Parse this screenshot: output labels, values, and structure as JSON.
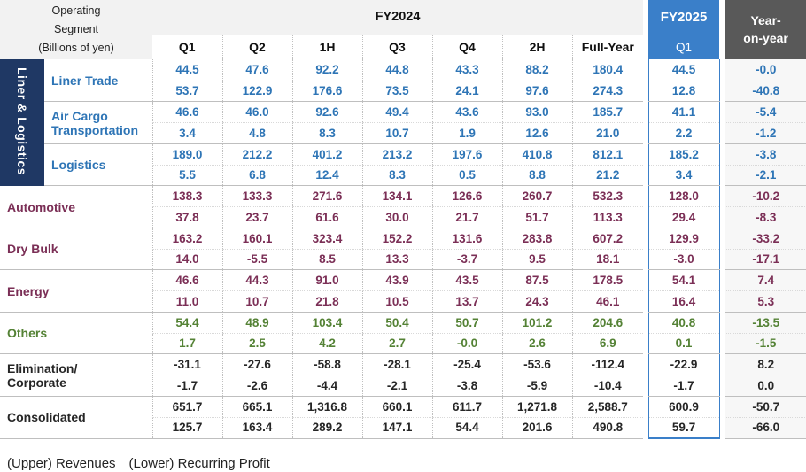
{
  "header": {
    "segment_label": "Operating Segment (Billions of yen)",
    "segment_line1": "Operating",
    "segment_line2": "Segment",
    "segment_line3": "(Billions of yen)",
    "fy2024": "FY2024",
    "fy2025": "FY2025",
    "yoy_line1": "Year-",
    "yoy_line2": "on-year",
    "columns": [
      "Q1",
      "Q2",
      "1H",
      "Q3",
      "Q4",
      "2H",
      "Full-Year"
    ],
    "fy2025_column": "Q1"
  },
  "group_label": "Liner & Logistics",
  "rows": [
    {
      "name": "Liner Trade",
      "color": "#2e75b6",
      "revenue": [
        "44.5",
        "47.6",
        "92.2",
        "44.8",
        "43.3",
        "88.2",
        "180.4",
        "44.5",
        "-0.0"
      ],
      "profit": [
        "53.7",
        "122.9",
        "176.6",
        "73.5",
        "24.1",
        "97.6",
        "274.3",
        "12.8",
        "-40.8"
      ]
    },
    {
      "name": "Air Cargo Transportation",
      "name_line1": "Air Cargo",
      "name_line2": "Transportation",
      "color": "#2e75b6",
      "revenue": [
        "46.6",
        "46.0",
        "92.6",
        "49.4",
        "43.6",
        "93.0",
        "185.7",
        "41.1",
        "-5.4"
      ],
      "profit": [
        "3.4",
        "4.8",
        "8.3",
        "10.7",
        "1.9",
        "12.6",
        "21.0",
        "2.2",
        "-1.2"
      ]
    },
    {
      "name": "Logistics",
      "color": "#2e75b6",
      "revenue": [
        "189.0",
        "212.2",
        "401.2",
        "213.2",
        "197.6",
        "410.8",
        "812.1",
        "185.2",
        "-3.8"
      ],
      "profit": [
        "5.5",
        "6.8",
        "12.4",
        "8.3",
        "0.5",
        "8.8",
        "21.2",
        "3.4",
        "-2.1"
      ]
    },
    {
      "name": "Automotive",
      "color": "#7b2f56",
      "revenue": [
        "138.3",
        "133.3",
        "271.6",
        "134.1",
        "126.6",
        "260.7",
        "532.3",
        "128.0",
        "-10.2"
      ],
      "profit": [
        "37.8",
        "23.7",
        "61.6",
        "30.0",
        "21.7",
        "51.7",
        "113.3",
        "29.4",
        "-8.3"
      ]
    },
    {
      "name": "Dry Bulk",
      "color": "#7b2f56",
      "revenue": [
        "163.2",
        "160.1",
        "323.4",
        "152.2",
        "131.6",
        "283.8",
        "607.2",
        "129.9",
        "-33.2"
      ],
      "profit": [
        "14.0",
        "-5.5",
        "8.5",
        "13.3",
        "-3.7",
        "9.5",
        "18.1",
        "-3.0",
        "-17.1"
      ]
    },
    {
      "name": "Energy",
      "color": "#7b2f56",
      "revenue": [
        "46.6",
        "44.3",
        "91.0",
        "43.9",
        "43.5",
        "87.5",
        "178.5",
        "54.1",
        "7.4"
      ],
      "profit": [
        "11.0",
        "10.7",
        "21.8",
        "10.5",
        "13.7",
        "24.3",
        "46.1",
        "16.4",
        "5.3"
      ]
    },
    {
      "name": "Others",
      "color": "#548235",
      "revenue": [
        "54.4",
        "48.9",
        "103.4",
        "50.4",
        "50.7",
        "101.2",
        "204.6",
        "40.8",
        "-13.5"
      ],
      "profit": [
        "1.7",
        "2.5",
        "4.2",
        "2.7",
        "-0.0",
        "2.6",
        "6.9",
        "0.1",
        "-1.5"
      ]
    },
    {
      "name": "Elimination/ Corporate",
      "name_line1": "Elimination/",
      "name_line2": "Corporate",
      "color": "#262626",
      "revenue": [
        "-31.1",
        "-27.6",
        "-58.8",
        "-28.1",
        "-25.4",
        "-53.6",
        "-112.4",
        "-22.9",
        "8.2"
      ],
      "profit": [
        "-1.7",
        "-2.6",
        "-4.4",
        "-2.1",
        "-3.8",
        "-5.9",
        "-10.4",
        "-1.7",
        "0.0"
      ]
    },
    {
      "name": "Consolidated",
      "color": "#262626",
      "revenue": [
        "651.7",
        "665.1",
        "1,316.8",
        "660.1",
        "611.7",
        "1,271.8",
        "2,588.7",
        "600.9",
        "-50.7"
      ],
      "profit": [
        "125.7",
        "163.4",
        "289.2",
        "147.1",
        "54.4",
        "201.6",
        "490.8",
        "59.7",
        "-66.0"
      ]
    }
  ],
  "legend": "(Upper) Revenues　(Lower) Recurring Profit",
  "colors": {
    "fy2025_accent": "#3a7fc9",
    "yoy_header": "#595959",
    "group_band": "#1f3864"
  }
}
